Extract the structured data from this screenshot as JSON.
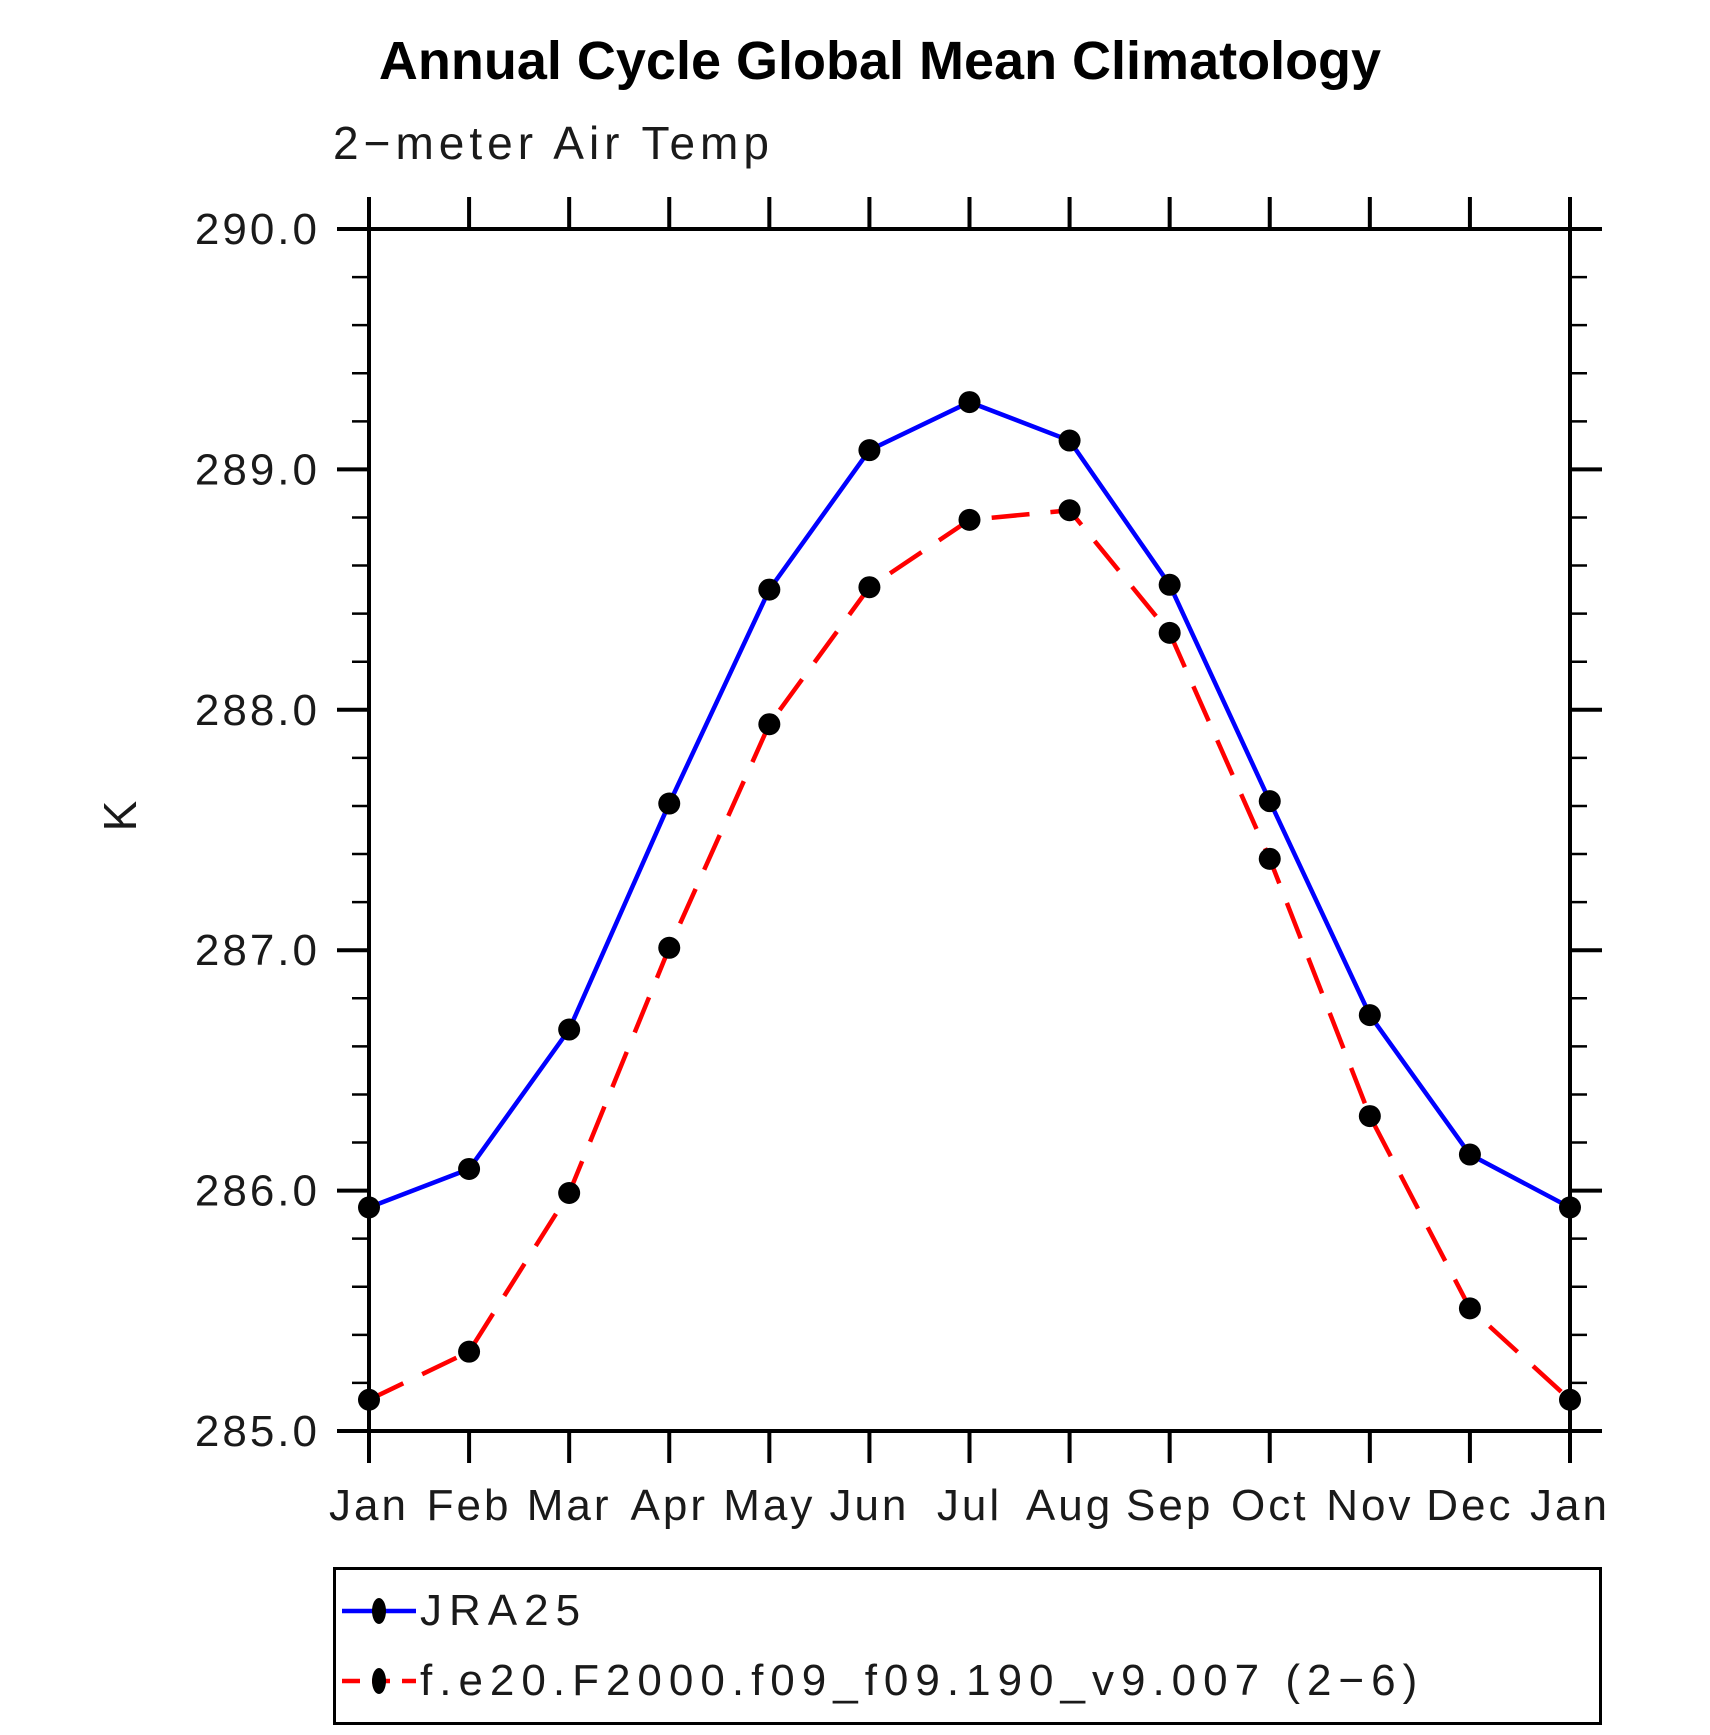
{
  "chart_data": {
    "type": "line",
    "title": "Annual Cycle Global Mean Climatology",
    "subtitle": "2−meter Air Temp",
    "ylabel": "K",
    "xlabel": "",
    "categories": [
      "Jan",
      "Feb",
      "Mar",
      "Apr",
      "May",
      "Jun",
      "Jul",
      "Aug",
      "Sep",
      "Oct",
      "Nov",
      "Dec",
      "Jan"
    ],
    "ylim": [
      285.0,
      290.0
    ],
    "yticks": [
      285.0,
      286.0,
      287.0,
      288.0,
      289.0,
      290.0
    ],
    "ytick_labels": [
      "285.0",
      "286.0",
      "287.0",
      "288.0",
      "289.0",
      "290.0"
    ],
    "y_minor_tick_interval": 0.2,
    "grid": false,
    "legend_position": "bottom-left",
    "frame_color": "#000000",
    "marker_color": "#000000",
    "series": [
      {
        "name": "JRA25",
        "color": "#0000ff",
        "style": "solid",
        "marker": "filled-circle",
        "values": [
          285.93,
          286.09,
          286.67,
          287.61,
          288.5,
          289.08,
          289.28,
          289.12,
          288.52,
          287.62,
          286.73,
          286.15,
          285.93
        ]
      },
      {
        "name": "f.e20.F2000.f09_f09.190_v9.007 (2−6)",
        "color": "#ff0000",
        "style": "dashed",
        "marker": "filled-circle",
        "values": [
          285.13,
          285.33,
          285.99,
          287.01,
          287.94,
          288.51,
          288.79,
          288.83,
          288.32,
          287.38,
          286.31,
          285.51,
          285.13
        ]
      }
    ]
  }
}
